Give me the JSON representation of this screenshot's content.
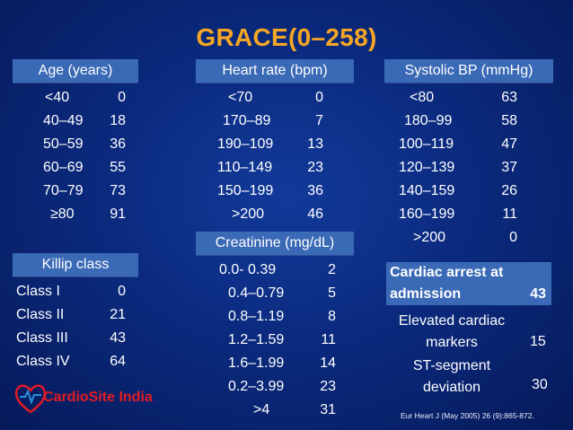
{
  "title": "GRACE(0–258)",
  "age": {
    "header": "Age (years)",
    "rows": [
      {
        "label": "<40",
        "value": "0"
      },
      {
        "label": "40–49",
        "value": "18"
      },
      {
        "label": "50–59",
        "value": "36"
      },
      {
        "label": "60–69",
        "value": "55"
      },
      {
        "label": "70–79",
        "value": "73"
      },
      {
        "label": "≥80",
        "value": "91"
      }
    ]
  },
  "heart_rate": {
    "header": "Heart rate (bpm)",
    "rows": [
      {
        "label": "<70",
        "value": "0"
      },
      {
        "label": "170–89",
        "value": "7"
      },
      {
        "label": "190–109",
        "value": "13"
      },
      {
        "label": "110–149",
        "value": "23"
      },
      {
        "label": "150–199",
        "value": "36"
      },
      {
        "label": ">200",
        "value": "46"
      }
    ]
  },
  "systolic_bp": {
    "header": "Systolic BP (mmHg)",
    "rows": [
      {
        "label": "<80",
        "value": "63"
      },
      {
        "label": "180–99",
        "value": "58"
      },
      {
        "label": "100–119",
        "value": "47"
      },
      {
        "label": "120–139",
        "value": "37"
      },
      {
        "label": "140–159",
        "value": "26"
      },
      {
        "label": "160–199",
        "value": "11"
      },
      {
        "label": ">200",
        "value": "0"
      }
    ]
  },
  "killip": {
    "header": "Killip class",
    "rows": [
      {
        "label": "Class I",
        "value": "0"
      },
      {
        "label": "Class II",
        "value": "21"
      },
      {
        "label": "Class III",
        "value": "43"
      },
      {
        "label": "Class IV",
        "value": "64"
      }
    ]
  },
  "creatinine": {
    "header": "Creatinine  (mg/dL)",
    "rows": [
      {
        "label": "0.0- 0.39",
        "value": "2"
      },
      {
        "label": "0.4–0.79",
        "value": "5"
      },
      {
        "label": "0.8–1.19",
        "value": "8"
      },
      {
        "label": "1.2–1.59",
        "value": "11"
      },
      {
        "label": "1.6–1.99",
        "value": "14"
      },
      {
        "label": "0.2–3.99",
        "value": "23"
      },
      {
        "label": ">4",
        "value": "31"
      }
    ]
  },
  "other": {
    "cardiac_arrest": {
      "label": "Cardiac arrest at admission",
      "value": "43"
    },
    "markers_line1": "Elevated cardiac",
    "markers_line2": "markers",
    "markers_value": "15",
    "st_line1": "ST-segment",
    "st_line2": "deviation",
    "st_value": "30"
  },
  "logo_text": "CardioSite India",
  "reference": "Eur Heart J (May 2005) 26 (9):865-872.",
  "colors": {
    "title": "#f5a623",
    "header_bg": "#3a69b6",
    "background": "#0b2a7e",
    "logo": "#e31b23"
  }
}
